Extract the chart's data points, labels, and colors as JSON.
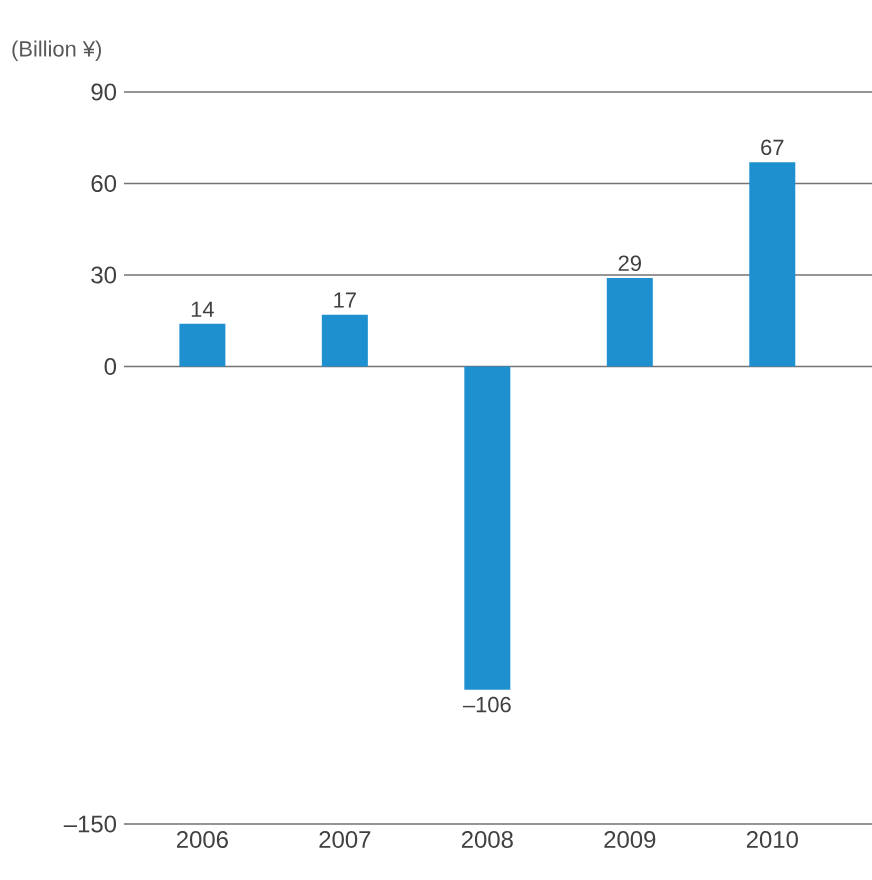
{
  "chart_data": {
    "type": "bar",
    "ylabel": "(Billion ¥)",
    "categories": [
      "2006",
      "2007",
      "2008",
      "2009",
      "2010"
    ],
    "values": [
      14,
      17,
      -106,
      29,
      67
    ],
    "value_labels": [
      "14",
      "17",
      "–106",
      "29",
      "67"
    ],
    "color": "#1e90d0",
    "ylim": [
      -150,
      90
    ],
    "yticks": [
      {
        "value": -150,
        "label": "–150"
      },
      0,
      30,
      60,
      90
    ],
    "grid": "y"
  }
}
